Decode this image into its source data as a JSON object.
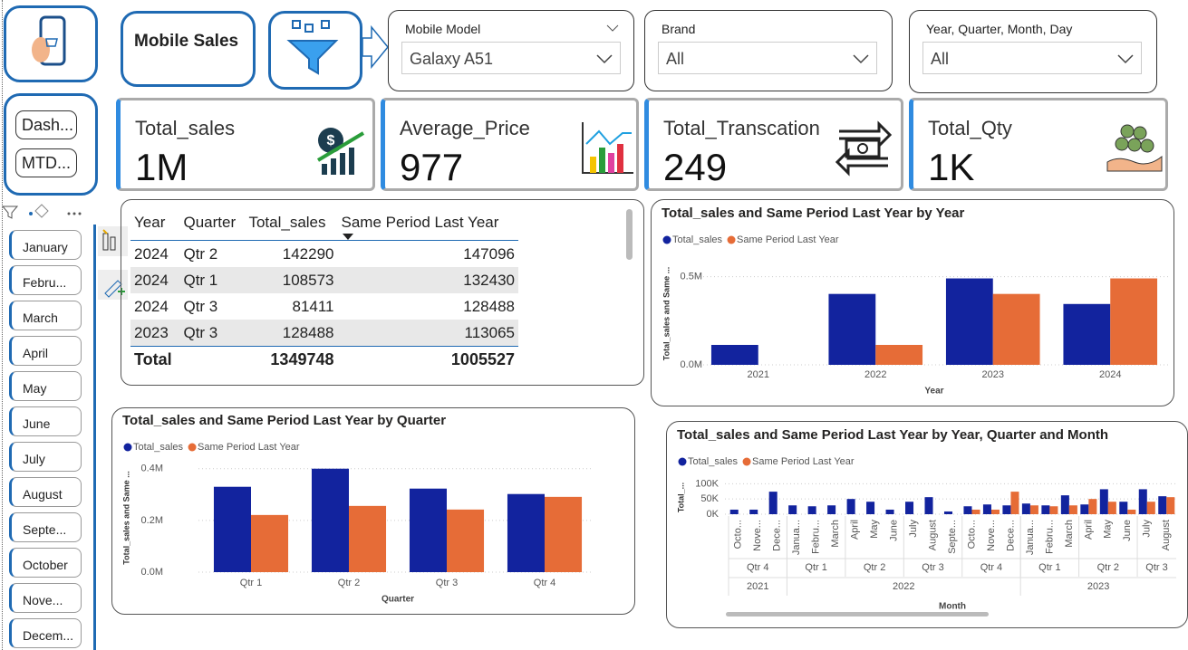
{
  "header": {
    "title": "Mobile Sales"
  },
  "navigation": {
    "buttons": [
      "Dash...",
      "MTD..."
    ]
  },
  "filters": [
    {
      "label": "Mobile Model",
      "value": "Galaxy A51"
    },
    {
      "label": "Brand",
      "value": "All"
    },
    {
      "label": "Year, Quarter, Month, Day",
      "value": "All"
    }
  ],
  "kpis": [
    {
      "label": "Total_sales",
      "value": "1M"
    },
    {
      "label": "Average_Price",
      "value": 977
    },
    {
      "label": "Total_Transcation",
      "value": 249
    },
    {
      "label": "Total_Qty",
      "value": "1K"
    }
  ],
  "month_slicer": [
    "January",
    "Febru...",
    "March",
    "April",
    "May",
    "June",
    "July",
    "August",
    "Septe...",
    "October",
    "Nove...",
    "Decem..."
  ],
  "table": {
    "columns": [
      "Year",
      "Quarter",
      "Total_sales",
      "Same Period Last Year"
    ],
    "rows": [
      [
        2024,
        "Qtr 2",
        142290,
        147096
      ],
      [
        2024,
        "Qtr 1",
        108573,
        132430
      ],
      [
        2024,
        "Qtr 3",
        81411,
        128488
      ],
      [
        2023,
        "Qtr 3",
        128488,
        113065
      ]
    ],
    "total": [
      "Total",
      1349748,
      1005527
    ]
  },
  "chart_data": [
    {
      "type": "bar",
      "title": "Total_sales and Same Period Last Year by Year",
      "x_label": "Year",
      "y_label": "Total_sales and Same ...",
      "categories": [
        "2021",
        "2022",
        "2023",
        "2024"
      ],
      "series": [
        {
          "name": "Total_sales",
          "color": "#12239e",
          "values": [
            113000,
            402000,
            490000,
            345000
          ]
        },
        {
          "name": "Same Period Last Year",
          "color": "#e66c37",
          "values": [
            null,
            113000,
            402000,
            490000
          ]
        }
      ],
      "ylim": [
        0,
        580000
      ],
      "yticks": [
        {
          "value": 0,
          "label": "0.0M"
        },
        {
          "value": 500000,
          "label": "0.5M"
        }
      ],
      "grid": true
    },
    {
      "type": "bar",
      "title": "Total_sales and Same Period Last Year by Quarter",
      "x_label": "Quarter",
      "y_label": "Total_sales and Same ...",
      "categories": [
        "Qtr 1",
        "Qtr 2",
        "Qtr 3",
        "Qtr 4"
      ],
      "series": [
        {
          "name": "Total_sales",
          "color": "#12239e",
          "values": [
            330000,
            400000,
            323000,
            302000
          ]
        },
        {
          "name": "Same Period Last Year",
          "color": "#e66c37",
          "values": [
            221000,
            256000,
            242000,
            291000
          ]
        }
      ],
      "ylim": [
        0,
        420000
      ],
      "yticks": [
        {
          "value": 0,
          "label": "0.0M"
        },
        {
          "value": 200000,
          "label": "0.2M"
        },
        {
          "value": 400000,
          "label": "0.4M"
        }
      ],
      "grid": true
    },
    {
      "type": "bar",
      "title": "Total_sales and Same Period Last Year by Year, Quarter and Month",
      "x_label": "Month",
      "y_label": "Total_...",
      "categories": [
        "Octo...",
        "Nove...",
        "Dece...",
        "Janua...",
        "Febru...",
        "March",
        "April",
        "May",
        "June",
        "July",
        "August",
        "Septe...",
        "Octo...",
        "Nove...",
        "Dece...",
        "Janua...",
        "Febru...",
        "March",
        "April",
        "May",
        "June",
        "July",
        "August"
      ],
      "quarters": [
        "Qtr 4",
        null,
        null,
        "Qtr 1",
        null,
        null,
        "Qtr 2",
        null,
        null,
        "Qtr 3",
        null,
        null,
        "Qtr 4",
        null,
        null,
        "Qtr 1",
        null,
        null,
        "Qtr 2",
        null,
        null,
        "Qtr 3",
        null
      ],
      "years": [
        "2021",
        null,
        null,
        "2022",
        null,
        null,
        null,
        null,
        null,
        null,
        null,
        null,
        null,
        null,
        null,
        "2023",
        null,
        null,
        null,
        null,
        null,
        null,
        null
      ],
      "series": [
        {
          "name": "Total_sales",
          "color": "#12239e",
          "values": [
            15000,
            15000,
            74000,
            29000,
            26000,
            29000,
            50000,
            41000,
            15000,
            41000,
            56000,
            9000,
            26000,
            32000,
            29000,
            35000,
            29000,
            62000,
            32000,
            82000,
            41000,
            82000,
            59000
          ]
        },
        {
          "name": "Same Period Last Year",
          "color": "#e66c37",
          "values": [
            null,
            null,
            null,
            null,
            null,
            null,
            null,
            null,
            null,
            null,
            null,
            null,
            15000,
            15000,
            74000,
            29000,
            26000,
            29000,
            50000,
            41000,
            15000,
            41000,
            56000
          ]
        }
      ],
      "ylim": [
        0,
        110000
      ],
      "yticks": [
        {
          "value": 0,
          "label": "0K"
        },
        {
          "value": 50000,
          "label": "50K"
        },
        {
          "value": 100000,
          "label": "100K"
        }
      ],
      "grid": true
    }
  ]
}
